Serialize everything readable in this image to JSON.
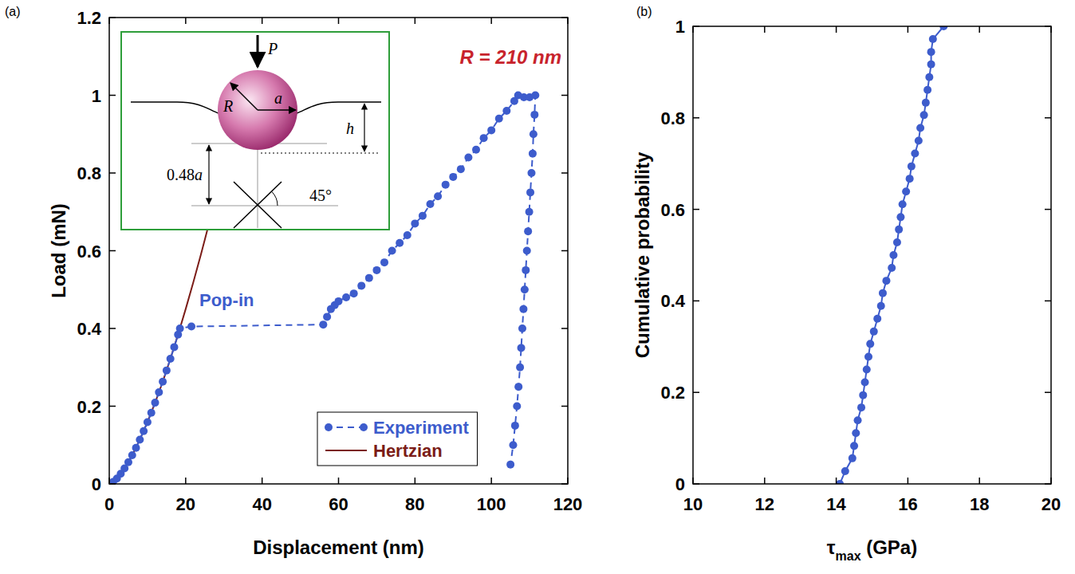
{
  "chart_data": [
    {
      "panel": "(a)",
      "type": "line",
      "xlabel": "Displacement (nm)",
      "ylabel": "Load (mN)",
      "xlim": [
        0,
        120
      ],
      "ylim": [
        0,
        1.2
      ],
      "xticks": [
        0,
        20,
        40,
        60,
        80,
        100,
        120
      ],
      "yticks": [
        0,
        0.2,
        0.4,
        0.6,
        0.8,
        1,
        1.2
      ],
      "grid": false,
      "legend": "lower right",
      "series": [
        {
          "name": "Experiment",
          "color": "#3d5ccc",
          "marker": "circle",
          "line_style": "dashed",
          "x": [
            0,
            1,
            2,
            3,
            4,
            5,
            6,
            7,
            8,
            9,
            10,
            11,
            12,
            13,
            14,
            15,
            16,
            17,
            18,
            18.5,
            21.5,
            56,
            57,
            58,
            59,
            60,
            62,
            64,
            66,
            68,
            70,
            72,
            74,
            76,
            78,
            80,
            82,
            84,
            86,
            88,
            90,
            92,
            94,
            96,
            98,
            100,
            102,
            104,
            106,
            107,
            108.5,
            110,
            111.5,
            111.3,
            111,
            110.8,
            110.5,
            110.2,
            109.9,
            109.6,
            109.3,
            109,
            108.7,
            108.4,
            108.1,
            107.8,
            107.5,
            107.1,
            106.7,
            106.2,
            105.7,
            105
          ],
          "values": [
            0,
            0.005,
            0.014,
            0.026,
            0.04,
            0.056,
            0.074,
            0.093,
            0.114,
            0.136,
            0.159,
            0.183,
            0.209,
            0.236,
            0.263,
            0.292,
            0.322,
            0.352,
            0.384,
            0.4,
            0.405,
            0.41,
            0.43,
            0.45,
            0.46,
            0.47,
            0.48,
            0.49,
            0.51,
            0.53,
            0.55,
            0.57,
            0.6,
            0.62,
            0.64,
            0.67,
            0.69,
            0.72,
            0.74,
            0.77,
            0.79,
            0.81,
            0.84,
            0.86,
            0.89,
            0.91,
            0.94,
            0.96,
            0.985,
            1,
            0.995,
            0.995,
            1,
            0.95,
            0.9,
            0.85,
            0.8,
            0.75,
            0.7,
            0.65,
            0.6,
            0.55,
            0.5,
            0.45,
            0.4,
            0.35,
            0.3,
            0.25,
            0.2,
            0.15,
            0.1,
            0.05
          ]
        },
        {
          "name": "Hertzian",
          "color": "#7b1c17",
          "line_style": "solid",
          "x": [
            0,
            2,
            4,
            6,
            8,
            10,
            12,
            14,
            16,
            18,
            20,
            22,
            24,
            25,
            26
          ],
          "values": [
            0,
            0.014,
            0.04,
            0.074,
            0.114,
            0.159,
            0.209,
            0.263,
            0.322,
            0.384,
            0.45,
            0.519,
            0.591,
            0.628,
            0.666
          ]
        }
      ],
      "annotations": [
        {
          "text": "R = 210 nm",
          "color": "#c8232c"
        },
        {
          "text": "Pop-in",
          "color": "#3d5ccc"
        }
      ],
      "inset_labels": [
        "P",
        "R",
        "a",
        "h",
        "0.48a",
        "45°"
      ]
    },
    {
      "panel": "(b)",
      "type": "line",
      "xlabel": [
        "τ",
        "max",
        " (GPa)"
      ],
      "ylabel": "Cumulative probability",
      "xlim": [
        10,
        20
      ],
      "ylim": [
        0,
        1
      ],
      "xticks": [
        10,
        12,
        14,
        16,
        18,
        20
      ],
      "yticks": [
        0,
        0.2,
        0.4,
        0.6,
        0.8,
        1
      ],
      "grid": false,
      "series": [
        {
          "color": "#3d5ccc",
          "marker": "circle",
          "line_style": "solid",
          "x": [
            14.1,
            14.25,
            14.45,
            14.5,
            14.55,
            14.6,
            14.7,
            14.75,
            14.8,
            14.85,
            14.9,
            14.95,
            15.05,
            15.15,
            15.25,
            15.3,
            15.4,
            15.55,
            15.6,
            15.7,
            15.75,
            15.8,
            15.85,
            15.95,
            16.05,
            16.1,
            16.2,
            16.3,
            16.35,
            16.45,
            16.5,
            16.55,
            16.6,
            16.65,
            16.65,
            16.7,
            17.0
          ],
          "values": [
            0,
            0.028,
            0.056,
            0.083,
            0.111,
            0.139,
            0.167,
            0.194,
            0.222,
            0.25,
            0.278,
            0.306,
            0.333,
            0.361,
            0.389,
            0.417,
            0.444,
            0.472,
            0.5,
            0.528,
            0.556,
            0.583,
            0.611,
            0.639,
            0.667,
            0.694,
            0.722,
            0.75,
            0.778,
            0.806,
            0.833,
            0.861,
            0.889,
            0.917,
            0.944,
            0.972,
            1
          ]
        }
      ]
    }
  ]
}
